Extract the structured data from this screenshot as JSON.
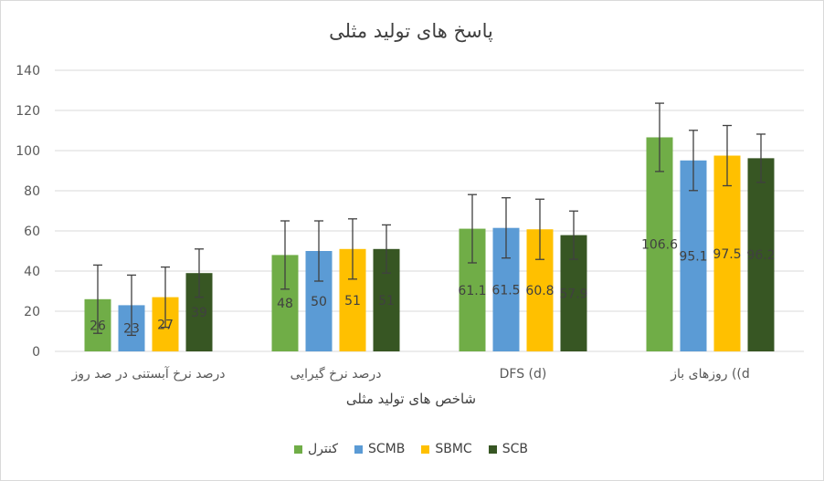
{
  "chart_data": {
    "type": "bar",
    "title": "پاسخ های تولید مثلی",
    "xlabel": "شاخص های تولید مثلی",
    "ylabel": "",
    "ylim": [
      0,
      140
    ],
    "yticks": [
      0,
      20,
      40,
      60,
      80,
      100,
      120,
      140
    ],
    "grid": true,
    "legend_position": "bottom",
    "categories": [
      "درصد نرخ آبستنی در صد روز",
      "درصد نرخ گیرایی",
      "DFS (d)",
      "روزهای باز ((d"
    ],
    "series": [
      {
        "name": "کنترل",
        "color": "#70ad47",
        "values": [
          26,
          48,
          61.1,
          106.6
        ],
        "labels": [
          "26",
          "48",
          "61.1",
          "106.6"
        ],
        "errors": [
          17,
          17,
          17,
          17
        ]
      },
      {
        "name": "SCMB",
        "color": "#5b9bd5",
        "values": [
          23,
          50,
          61.5,
          95.1
        ],
        "labels": [
          "23",
          "50",
          "61.5",
          "95.1"
        ],
        "errors": [
          15,
          15,
          15,
          15
        ]
      },
      {
        "name": "SBMC",
        "color": "#ffc000",
        "values": [
          27,
          51,
          60.8,
          97.5
        ],
        "labels": [
          "27",
          "51",
          "60.8",
          "97.5"
        ],
        "errors": [
          15,
          15,
          15,
          15
        ]
      },
      {
        "name": "SCB",
        "color": "#375623",
        "values": [
          39,
          51,
          57.9,
          96.2
        ],
        "labels": [
          "39",
          "51",
          "57.9",
          "96.2"
        ],
        "errors": [
          12,
          12,
          12,
          12
        ]
      }
    ]
  }
}
